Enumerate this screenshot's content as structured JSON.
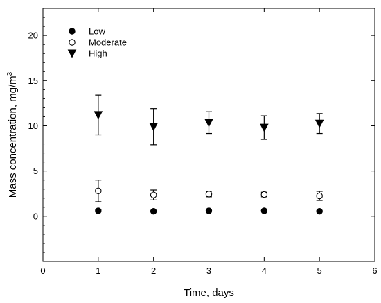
{
  "chart_data": {
    "type": "scatter",
    "title": "",
    "xlabel": "Time, days",
    "ylabel": "Mass concentration, mg/m",
    "ylabel_superscript": "3",
    "xlim": [
      0,
      6
    ],
    "ylim": [
      -5,
      23
    ],
    "x_ticks": [
      0,
      1,
      2,
      3,
      4,
      5,
      6
    ],
    "y_ticks": [
      0,
      5,
      10,
      15,
      20
    ],
    "grid": false,
    "legend_position": "top-left",
    "series": [
      {
        "name": "Low",
        "marker": "filled-circle",
        "x": [
          1,
          2,
          3,
          4,
          5
        ],
        "y": [
          0.6,
          0.55,
          0.6,
          0.6,
          0.55
        ],
        "err": [
          0.1,
          0.05,
          0.05,
          0.05,
          0.05
        ]
      },
      {
        "name": "Moderate",
        "marker": "open-circle",
        "x": [
          1,
          2,
          3,
          4,
          5
        ],
        "y": [
          2.8,
          2.35,
          2.45,
          2.4,
          2.25
        ],
        "err": [
          1.2,
          0.55,
          0.3,
          0.25,
          0.5
        ]
      },
      {
        "name": "High",
        "marker": "filled-triangle-down",
        "x": [
          1,
          2,
          3,
          4,
          5
        ],
        "y": [
          11.2,
          9.9,
          10.35,
          9.8,
          10.25
        ],
        "err": [
          2.2,
          2.0,
          1.2,
          1.3,
          1.1
        ]
      }
    ]
  }
}
